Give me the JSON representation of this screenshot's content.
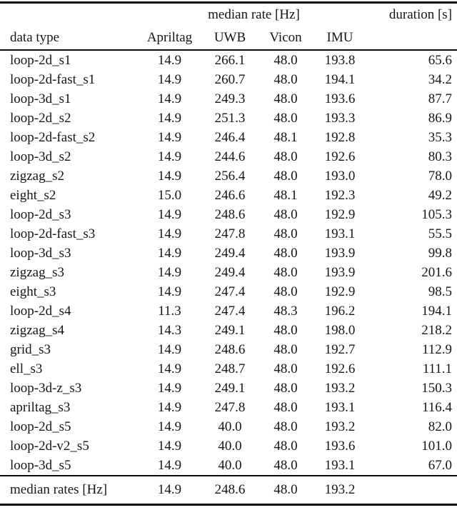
{
  "table": {
    "header": {
      "data_type_label": "data type",
      "rate_group_label": "median rate [Hz]",
      "duration_label": "duration [s]",
      "rate_columns": [
        "Apriltag",
        "UWB",
        "Vicon",
        "IMU"
      ]
    },
    "rows": [
      {
        "name": "loop-2d_s1",
        "apriltag": "14.9",
        "uwb": "266.1",
        "vicon": "48.0",
        "imu": "193.8",
        "duration": "65.6"
      },
      {
        "name": "loop-2d-fast_s1",
        "apriltag": "14.9",
        "uwb": "260.7",
        "vicon": "48.0",
        "imu": "194.1",
        "duration": "34.2"
      },
      {
        "name": "loop-3d_s1",
        "apriltag": "14.9",
        "uwb": "249.3",
        "vicon": "48.0",
        "imu": "193.6",
        "duration": "87.7"
      },
      {
        "name": "loop-2d_s2",
        "apriltag": "14.9",
        "uwb": "251.3",
        "vicon": "48.0",
        "imu": "193.3",
        "duration": "86.9"
      },
      {
        "name": "loop-2d-fast_s2",
        "apriltag": "14.9",
        "uwb": "246.4",
        "vicon": "48.1",
        "imu": "192.8",
        "duration": "35.3"
      },
      {
        "name": "loop-3d_s2",
        "apriltag": "14.9",
        "uwb": "244.6",
        "vicon": "48.0",
        "imu": "192.6",
        "duration": "80.3"
      },
      {
        "name": "zigzag_s2",
        "apriltag": "14.9",
        "uwb": "256.4",
        "vicon": "48.0",
        "imu": "193.0",
        "duration": "78.0"
      },
      {
        "name": "eight_s2",
        "apriltag": "15.0",
        "uwb": "246.6",
        "vicon": "48.1",
        "imu": "192.3",
        "duration": "49.2"
      },
      {
        "name": "loop-2d_s3",
        "apriltag": "14.9",
        "uwb": "248.6",
        "vicon": "48.0",
        "imu": "192.9",
        "duration": "105.3"
      },
      {
        "name": "loop-2d-fast_s3",
        "apriltag": "14.9",
        "uwb": "247.8",
        "vicon": "48.0",
        "imu": "193.1",
        "duration": "55.5"
      },
      {
        "name": "loop-3d_s3",
        "apriltag": "14.9",
        "uwb": "249.4",
        "vicon": "48.0",
        "imu": "193.9",
        "duration": "99.8"
      },
      {
        "name": "zigzag_s3",
        "apriltag": "14.9",
        "uwb": "249.4",
        "vicon": "48.0",
        "imu": "193.9",
        "duration": "201.6"
      },
      {
        "name": "eight_s3",
        "apriltag": "14.9",
        "uwb": "247.4",
        "vicon": "48.0",
        "imu": "192.9",
        "duration": "98.5"
      },
      {
        "name": "loop-2d_s4",
        "apriltag": "11.3",
        "uwb": "247.4",
        "vicon": "48.3",
        "imu": "196.2",
        "duration": "194.1"
      },
      {
        "name": "zigzag_s4",
        "apriltag": "14.3",
        "uwb": "249.1",
        "vicon": "48.0",
        "imu": "198.0",
        "duration": "218.2"
      },
      {
        "name": "grid_s3",
        "apriltag": "14.9",
        "uwb": "248.6",
        "vicon": "48.0",
        "imu": "192.7",
        "duration": "112.9"
      },
      {
        "name": "ell_s3",
        "apriltag": "14.9",
        "uwb": "248.7",
        "vicon": "48.0",
        "imu": "192.6",
        "duration": "111.1"
      },
      {
        "name": "loop-3d-z_s3",
        "apriltag": "14.9",
        "uwb": "249.1",
        "vicon": "48.0",
        "imu": "193.2",
        "duration": "150.3"
      },
      {
        "name": "apriltag_s3",
        "apriltag": "14.9",
        "uwb": "247.8",
        "vicon": "48.0",
        "imu": "193.1",
        "duration": "116.4"
      },
      {
        "name": "loop-2d_s5",
        "apriltag": "14.9",
        "uwb": "40.0",
        "vicon": "48.0",
        "imu": "193.2",
        "duration": "82.0"
      },
      {
        "name": "loop-2d-v2_s5",
        "apriltag": "14.9",
        "uwb": "40.0",
        "vicon": "48.0",
        "imu": "193.6",
        "duration": "101.0"
      },
      {
        "name": "loop-3d_s5",
        "apriltag": "14.9",
        "uwb": "40.0",
        "vicon": "48.0",
        "imu": "193.1",
        "duration": "67.0"
      }
    ],
    "footer": {
      "label": "median rates [Hz]",
      "apriltag": "14.9",
      "uwb": "248.6",
      "vicon": "48.0",
      "imu": "193.2",
      "duration": ""
    }
  }
}
